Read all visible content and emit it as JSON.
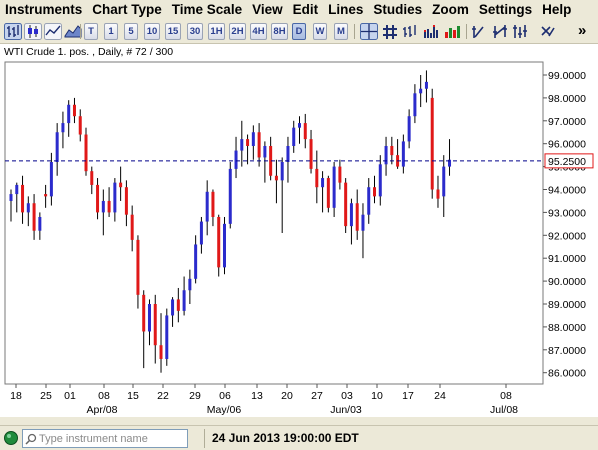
{
  "menu": [
    "Instruments",
    "Chart Type",
    "Time Scale",
    "View",
    "Edit",
    "Lines",
    "Studies",
    "Zoom",
    "Settings",
    "Help"
  ],
  "toolbar": {
    "timeframes": [
      "T",
      "1",
      "5",
      "10",
      "15",
      "30",
      "1H",
      "2H",
      "4H",
      "8H",
      "D",
      "W",
      "M"
    ],
    "active_timeframe": "D",
    "overflow_label": "»"
  },
  "chart_header": "WTI Crude 1. pos. , Daily, # 72 / 300",
  "current_price_label": "95.2500",
  "search": {
    "placeholder": "Type instrument name"
  },
  "status": {
    "datetime": "24 Jun 2013 19:00:00 EDT"
  },
  "colors": {
    "up": "#2b2bcc",
    "down": "#e01818",
    "wick": "#000000",
    "price_line": "#00008b"
  },
  "chart_data": {
    "type": "candlestick",
    "instrument": "WTI Crude 1. pos.",
    "timeframe": "Daily",
    "ylim": [
      85.4,
      99.8
    ],
    "yticks": [
      "99.0000",
      "98.0000",
      "97.0000",
      "96.0000",
      "95.0000",
      "94.0000",
      "93.0000",
      "92.0000",
      "91.0000",
      "90.0000",
      "89.0000",
      "88.0000",
      "87.0000",
      "86.0000"
    ],
    "price_line": 95.25,
    "xticks": [
      "18",
      "25",
      "01",
      "08",
      "15",
      "22",
      "29",
      "06",
      "13",
      "20",
      "27",
      "03",
      "10",
      "17",
      "24",
      "08"
    ],
    "month_labels": [
      "Apr/08",
      "May/06",
      "Jun/03",
      "Jul/08"
    ],
    "candles": [
      {
        "o": 93.5,
        "h": 94.0,
        "l": 92.6,
        "c": 93.8
      },
      {
        "o": 93.8,
        "h": 94.3,
        "l": 93.0,
        "c": 94.2
      },
      {
        "o": 94.2,
        "h": 94.6,
        "l": 92.5,
        "c": 93.0
      },
      {
        "o": 93.0,
        "h": 93.7,
        "l": 92.4,
        "c": 93.4
      },
      {
        "o": 93.4,
        "h": 93.8,
        "l": 91.8,
        "c": 92.2
      },
      {
        "o": 92.2,
        "h": 93.0,
        "l": 91.8,
        "c": 92.8
      },
      {
        "o": 93.8,
        "h": 94.2,
        "l": 93.2,
        "c": 93.7
      },
      {
        "o": 93.7,
        "h": 95.6,
        "l": 93.3,
        "c": 95.2
      },
      {
        "o": 95.2,
        "h": 96.9,
        "l": 94.6,
        "c": 96.5
      },
      {
        "o": 96.5,
        "h": 97.4,
        "l": 95.8,
        "c": 96.9
      },
      {
        "o": 96.9,
        "h": 97.9,
        "l": 96.3,
        "c": 97.7
      },
      {
        "o": 97.7,
        "h": 98.0,
        "l": 96.9,
        "c": 97.2
      },
      {
        "o": 97.2,
        "h": 97.5,
        "l": 96.1,
        "c": 96.4
      },
      {
        "o": 96.4,
        "h": 96.7,
        "l": 94.6,
        "c": 94.8
      },
      {
        "o": 94.8,
        "h": 95.0,
        "l": 93.8,
        "c": 94.2
      },
      {
        "o": 94.2,
        "h": 94.5,
        "l": 92.7,
        "c": 93.0
      },
      {
        "o": 93.0,
        "h": 94.0,
        "l": 92.0,
        "c": 93.5
      },
      {
        "o": 93.5,
        "h": 94.1,
        "l": 92.8,
        "c": 93.0
      },
      {
        "o": 93.0,
        "h": 94.5,
        "l": 92.6,
        "c": 94.3
      },
      {
        "o": 94.3,
        "h": 95.0,
        "l": 93.5,
        "c": 94.1
      },
      {
        "o": 94.1,
        "h": 94.4,
        "l": 92.4,
        "c": 92.9
      },
      {
        "o": 92.9,
        "h": 93.3,
        "l": 91.3,
        "c": 91.8
      },
      {
        "o": 91.8,
        "h": 92.0,
        "l": 88.8,
        "c": 89.4
      },
      {
        "o": 89.4,
        "h": 89.6,
        "l": 86.2,
        "c": 87.8
      },
      {
        "o": 87.8,
        "h": 89.2,
        "l": 87.2,
        "c": 89.0
      },
      {
        "o": 89.0,
        "h": 89.4,
        "l": 86.4,
        "c": 87.2
      },
      {
        "o": 87.2,
        "h": 88.6,
        "l": 86.0,
        "c": 86.6
      },
      {
        "o": 86.6,
        "h": 88.8,
        "l": 86.3,
        "c": 88.5
      },
      {
        "o": 88.5,
        "h": 89.3,
        "l": 88.0,
        "c": 89.2
      },
      {
        "o": 89.2,
        "h": 89.7,
        "l": 88.2,
        "c": 88.7
      },
      {
        "o": 88.7,
        "h": 90.2,
        "l": 88.5,
        "c": 89.6
      },
      {
        "o": 89.6,
        "h": 90.5,
        "l": 89.0,
        "c": 90.1
      },
      {
        "o": 90.1,
        "h": 92.0,
        "l": 89.9,
        "c": 91.6
      },
      {
        "o": 91.6,
        "h": 92.8,
        "l": 91.2,
        "c": 92.6
      },
      {
        "o": 92.6,
        "h": 94.4,
        "l": 92.0,
        "c": 93.9
      },
      {
        "o": 93.9,
        "h": 94.0,
        "l": 92.4,
        "c": 92.8
      },
      {
        "o": 92.8,
        "h": 92.9,
        "l": 90.2,
        "c": 90.6
      },
      {
        "o": 90.6,
        "h": 92.8,
        "l": 90.3,
        "c": 92.5
      },
      {
        "o": 92.5,
        "h": 95.2,
        "l": 92.3,
        "c": 94.9
      },
      {
        "o": 94.9,
        "h": 96.3,
        "l": 94.5,
        "c": 95.7
      },
      {
        "o": 95.7,
        "h": 97.0,
        "l": 95.0,
        "c": 96.2
      },
      {
        "o": 96.2,
        "h": 96.4,
        "l": 95.1,
        "c": 95.9
      },
      {
        "o": 95.9,
        "h": 96.8,
        "l": 95.3,
        "c": 96.5
      },
      {
        "o": 96.5,
        "h": 96.9,
        "l": 95.0,
        "c": 95.4
      },
      {
        "o": 95.4,
        "h": 96.1,
        "l": 94.3,
        "c": 95.9
      },
      {
        "o": 95.9,
        "h": 96.3,
        "l": 94.4,
        "c": 94.6
      },
      {
        "o": 94.6,
        "h": 95.3,
        "l": 93.4,
        "c": 94.4
      },
      {
        "o": 94.4,
        "h": 95.4,
        "l": 92.1,
        "c": 95.2
      },
      {
        "o": 95.2,
        "h": 96.3,
        "l": 94.3,
        "c": 95.9
      },
      {
        "o": 95.9,
        "h": 97.0,
        "l": 95.6,
        "c": 96.7
      },
      {
        "o": 96.7,
        "h": 97.2,
        "l": 96.0,
        "c": 96.9
      },
      {
        "o": 96.9,
        "h": 97.3,
        "l": 95.8,
        "c": 96.2
      },
      {
        "o": 96.2,
        "h": 96.6,
        "l": 94.7,
        "c": 94.9
      },
      {
        "o": 94.9,
        "h": 95.7,
        "l": 93.4,
        "c": 94.1
      },
      {
        "o": 94.1,
        "h": 94.8,
        "l": 93.0,
        "c": 94.5
      },
      {
        "o": 94.5,
        "h": 94.6,
        "l": 93.0,
        "c": 93.2
      },
      {
        "o": 93.2,
        "h": 95.2,
        "l": 92.8,
        "c": 95.0
      },
      {
        "o": 95.0,
        "h": 95.3,
        "l": 94.0,
        "c": 94.3
      },
      {
        "o": 94.3,
        "h": 94.5,
        "l": 92.1,
        "c": 92.4
      },
      {
        "o": 92.4,
        "h": 93.6,
        "l": 91.6,
        "c": 93.4
      },
      {
        "o": 93.4,
        "h": 94.0,
        "l": 91.8,
        "c": 92.2
      },
      {
        "o": 92.2,
        "h": 93.4,
        "l": 91.0,
        "c": 92.9
      },
      {
        "o": 92.9,
        "h": 94.5,
        "l": 92.5,
        "c": 94.1
      },
      {
        "o": 94.1,
        "h": 94.6,
        "l": 93.4,
        "c": 93.7
      },
      {
        "o": 93.7,
        "h": 95.5,
        "l": 93.3,
        "c": 95.1
      },
      {
        "o": 95.1,
        "h": 96.3,
        "l": 94.6,
        "c": 95.9
      },
      {
        "o": 95.9,
        "h": 96.3,
        "l": 95.1,
        "c": 95.5
      },
      {
        "o": 95.5,
        "h": 96.2,
        "l": 94.9,
        "c": 95.0
      },
      {
        "o": 95.0,
        "h": 96.4,
        "l": 94.7,
        "c": 96.1
      },
      {
        "o": 96.1,
        "h": 97.5,
        "l": 95.8,
        "c": 97.2
      },
      {
        "o": 97.2,
        "h": 98.6,
        "l": 96.9,
        "c": 98.2
      },
      {
        "o": 98.2,
        "h": 99.0,
        "l": 97.6,
        "c": 98.4
      },
      {
        "o": 98.4,
        "h": 99.2,
        "l": 97.8,
        "c": 98.7
      },
      {
        "o": 98.0,
        "h": 98.4,
        "l": 93.6,
        "c": 94.0
      },
      {
        "o": 94.0,
        "h": 94.6,
        "l": 93.2,
        "c": 93.6
      },
      {
        "o": 93.7,
        "h": 95.5,
        "l": 92.8,
        "c": 95.0
      },
      {
        "o": 95.0,
        "h": 96.2,
        "l": 94.6,
        "c": 95.3
      }
    ]
  }
}
